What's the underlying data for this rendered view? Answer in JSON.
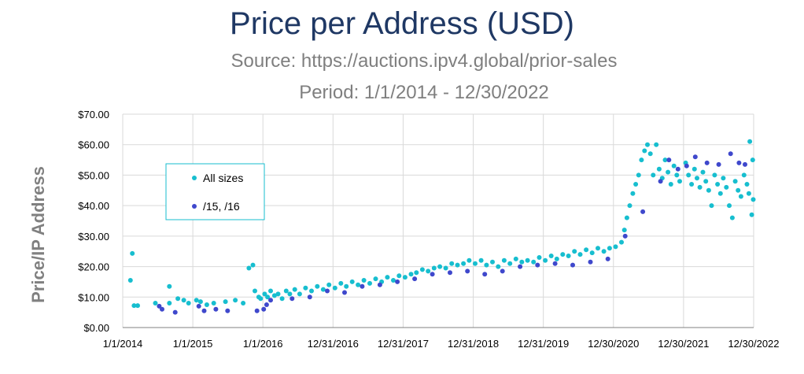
{
  "chart_data": {
    "type": "scatter",
    "title": "Price per Address (USD)",
    "subtitles": [
      "Source: https://auctions.ipv4.global/prior-sales",
      "Period: 1/1/2014 - 12/30/2022"
    ],
    "xlabel": "",
    "ylabel": "Price/IP Address",
    "x_ticks": [
      "1/1/2014",
      "1/1/2015",
      "1/1/2016",
      "12/31/2016",
      "12/31/2017",
      "12/31/2018",
      "12/31/2019",
      "12/30/2020",
      "12/30/2021",
      "12/30/2022"
    ],
    "y_ticks": [
      "$0.00",
      "$10.00",
      "$20.00",
      "$30.00",
      "$40.00",
      "$50.00",
      "$60.00",
      "$70.00"
    ],
    "xlim": [
      "1/1/2014",
      "12/30/2022"
    ],
    "ylim": [
      0,
      70
    ],
    "grid": true,
    "legend_position": "top-left",
    "series": [
      {
        "name": "All sizes",
        "color": "#17becf",
        "points": [
          [
            "2014-02-10",
            15.5
          ],
          [
            "2014-02-20",
            24.3
          ],
          [
            "2014-03-01",
            7.2
          ],
          [
            "2014-03-20",
            7.2
          ],
          [
            "2014-06-20",
            8.0
          ],
          [
            "2014-09-01",
            13.5
          ],
          [
            "2014-09-01",
            8.0
          ],
          [
            "2014-10-15",
            9.5
          ],
          [
            "2014-11-15",
            9.0
          ],
          [
            "2014-12-10",
            8.0
          ],
          [
            "2015-01-20",
            9.0
          ],
          [
            "2015-02-10",
            8.5
          ],
          [
            "2015-03-15",
            7.5
          ],
          [
            "2015-04-20",
            8.0
          ],
          [
            "2015-06-20",
            8.5
          ],
          [
            "2015-08-10",
            9.0
          ],
          [
            "2015-09-20",
            8.0
          ],
          [
            "2015-10-20",
            19.5
          ],
          [
            "2015-11-10",
            20.5
          ],
          [
            "2015-11-20",
            12.0
          ],
          [
            "2015-12-10",
            10.0
          ],
          [
            "2015-12-20",
            9.5
          ],
          [
            "2016-01-10",
            11.0
          ],
          [
            "2016-01-25",
            10.0
          ],
          [
            "2016-02-10",
            12.0
          ],
          [
            "2016-03-01",
            10.5
          ],
          [
            "2016-03-20",
            11.0
          ],
          [
            "2016-04-10",
            9.5
          ],
          [
            "2016-05-01",
            12.0
          ],
          [
            "2016-05-20",
            11.0
          ],
          [
            "2016-06-15",
            12.5
          ],
          [
            "2016-07-10",
            11.0
          ],
          [
            "2016-08-10",
            13.0
          ],
          [
            "2016-09-10",
            12.0
          ],
          [
            "2016-10-10",
            13.5
          ],
          [
            "2016-11-10",
            12.5
          ],
          [
            "2016-12-10",
            14.0
          ],
          [
            "2017-01-10",
            13.0
          ],
          [
            "2017-02-10",
            14.5
          ],
          [
            "2017-03-10",
            13.5
          ],
          [
            "2017-04-10",
            15.0
          ],
          [
            "2017-05-10",
            14.0
          ],
          [
            "2017-06-10",
            15.5
          ],
          [
            "2017-07-10",
            14.5
          ],
          [
            "2017-08-10",
            16.0
          ],
          [
            "2017-09-10",
            15.0
          ],
          [
            "2017-10-10",
            16.5
          ],
          [
            "2017-11-10",
            15.5
          ],
          [
            "2017-12-10",
            17.0
          ],
          [
            "2018-01-10",
            16.5
          ],
          [
            "2018-02-10",
            17.5
          ],
          [
            "2018-03-10",
            18.0
          ],
          [
            "2018-04-10",
            19.0
          ],
          [
            "2018-05-10",
            18.5
          ],
          [
            "2018-06-10",
            19.5
          ],
          [
            "2018-07-10",
            20.0
          ],
          [
            "2018-08-10",
            19.5
          ],
          [
            "2018-09-10",
            21.0
          ],
          [
            "2018-10-10",
            20.5
          ],
          [
            "2018-11-10",
            21.0
          ],
          [
            "2018-12-10",
            22.0
          ],
          [
            "2019-01-10",
            21.0
          ],
          [
            "2019-02-10",
            22.0
          ],
          [
            "2019-03-10",
            20.5
          ],
          [
            "2019-04-10",
            21.5
          ],
          [
            "2019-05-10",
            20.0
          ],
          [
            "2019-06-10",
            22.0
          ],
          [
            "2019-07-10",
            21.0
          ],
          [
            "2019-08-10",
            22.5
          ],
          [
            "2019-09-10",
            21.5
          ],
          [
            "2019-10-10",
            22.0
          ],
          [
            "2019-11-10",
            21.5
          ],
          [
            "2019-12-10",
            23.0
          ],
          [
            "2020-01-10",
            22.0
          ],
          [
            "2020-02-10",
            23.5
          ],
          [
            "2020-03-10",
            22.5
          ],
          [
            "2020-04-10",
            24.0
          ],
          [
            "2020-05-10",
            23.5
          ],
          [
            "2020-06-10",
            25.0
          ],
          [
            "2020-07-10",
            24.0
          ],
          [
            "2020-08-10",
            25.5
          ],
          [
            "2020-09-10",
            24.5
          ],
          [
            "2020-10-10",
            26.0
          ],
          [
            "2020-11-10",
            25.0
          ],
          [
            "2020-12-10",
            26.0
          ],
          [
            "2021-01-10",
            26.5
          ],
          [
            "2021-02-10",
            28.0
          ],
          [
            "2021-02-25",
            32.0
          ],
          [
            "2021-03-10",
            36.0
          ],
          [
            "2021-03-25",
            40.0
          ],
          [
            "2021-04-10",
            44.0
          ],
          [
            "2021-04-25",
            47.0
          ],
          [
            "2021-05-10",
            50.0
          ],
          [
            "2021-05-25",
            55.0
          ],
          [
            "2021-06-10",
            58.0
          ],
          [
            "2021-06-25",
            60.0
          ],
          [
            "2021-07-10",
            57.0
          ],
          [
            "2021-07-25",
            50.0
          ],
          [
            "2021-08-10",
            60.0
          ],
          [
            "2021-08-25",
            52.0
          ],
          [
            "2021-09-10",
            49.0
          ],
          [
            "2021-09-25",
            55.0
          ],
          [
            "2021-10-10",
            51.0
          ],
          [
            "2021-10-25",
            47.0
          ],
          [
            "2021-11-10",
            53.0
          ],
          [
            "2021-11-25",
            50.0
          ],
          [
            "2021-12-10",
            48.0
          ],
          [
            "2022-01-10",
            54.0
          ],
          [
            "2022-01-25",
            50.0
          ],
          [
            "2022-02-10",
            47.0
          ],
          [
            "2022-02-25",
            52.0
          ],
          [
            "2022-03-10",
            49.0
          ],
          [
            "2022-03-25",
            46.0
          ],
          [
            "2022-04-10",
            51.0
          ],
          [
            "2022-04-25",
            48.0
          ],
          [
            "2022-05-10",
            45.0
          ],
          [
            "2022-05-25",
            40.0
          ],
          [
            "2022-06-10",
            50.0
          ],
          [
            "2022-06-25",
            47.0
          ],
          [
            "2022-07-10",
            44.0
          ],
          [
            "2022-07-25",
            49.0
          ],
          [
            "2022-08-10",
            46.0
          ],
          [
            "2022-08-25",
            40.0
          ],
          [
            "2022-09-10",
            36.0
          ],
          [
            "2022-09-25",
            48.0
          ],
          [
            "2022-10-10",
            45.0
          ],
          [
            "2022-10-25",
            43.0
          ],
          [
            "2022-11-10",
            50.0
          ],
          [
            "2022-11-25",
            47.0
          ],
          [
            "2022-12-05",
            44.0
          ],
          [
            "2022-12-10",
            61.0
          ],
          [
            "2022-12-20",
            37.0
          ],
          [
            "2022-12-25",
            55.0
          ],
          [
            "2022-12-28",
            42.0
          ]
        ]
      },
      {
        "name": "/15, /16",
        "color": "#3f48cc",
        "points": [
          [
            "2014-07-10",
            7.0
          ],
          [
            "2014-07-25",
            6.0
          ],
          [
            "2014-10-01",
            5.0
          ],
          [
            "2015-02-01",
            7.0
          ],
          [
            "2015-03-01",
            5.5
          ],
          [
            "2015-05-01",
            6.0
          ],
          [
            "2015-07-01",
            5.5
          ],
          [
            "2015-12-01",
            5.5
          ],
          [
            "2016-01-05",
            6.0
          ],
          [
            "2016-01-20",
            7.5
          ],
          [
            "2016-02-10",
            9.0
          ],
          [
            "2016-06-01",
            9.5
          ],
          [
            "2016-09-01",
            10.0
          ],
          [
            "2016-12-01",
            12.0
          ],
          [
            "2017-03-01",
            11.5
          ],
          [
            "2017-06-01",
            13.5
          ],
          [
            "2017-09-01",
            14.0
          ],
          [
            "2017-12-01",
            15.0
          ],
          [
            "2018-03-01",
            16.0
          ],
          [
            "2018-06-01",
            17.5
          ],
          [
            "2018-09-01",
            18.0
          ],
          [
            "2018-12-01",
            18.5
          ],
          [
            "2019-03-01",
            17.5
          ],
          [
            "2019-06-01",
            18.5
          ],
          [
            "2019-09-01",
            20.0
          ],
          [
            "2019-12-01",
            20.5
          ],
          [
            "2020-03-01",
            21.0
          ],
          [
            "2020-06-01",
            20.5
          ],
          [
            "2020-09-01",
            21.5
          ],
          [
            "2020-12-01",
            22.5
          ],
          [
            "2021-03-01",
            30.0
          ],
          [
            "2021-06-01",
            38.0
          ],
          [
            "2021-09-01",
            48.0
          ],
          [
            "2021-10-15",
            55.0
          ],
          [
            "2021-12-01",
            52.0
          ],
          [
            "2022-01-15",
            53.0
          ],
          [
            "2022-03-01",
            56.0
          ],
          [
            "2022-05-01",
            54.0
          ],
          [
            "2022-07-01",
            53.5
          ],
          [
            "2022-09-01",
            57.0
          ],
          [
            "2022-10-15",
            54.0
          ],
          [
            "2022-11-15",
            53.5
          ]
        ]
      }
    ]
  }
}
